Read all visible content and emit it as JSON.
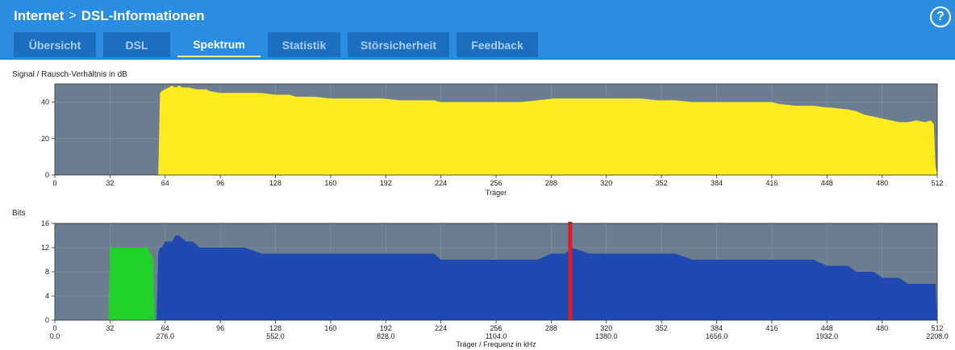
{
  "header": {
    "crumbs": [
      "Internet",
      "DSL-Informationen"
    ],
    "help_label": "?"
  },
  "tabs": [
    {
      "label": "Übersicht",
      "active": false
    },
    {
      "label": "DSL",
      "active": false
    },
    {
      "label": "Spektrum",
      "active": true
    },
    {
      "label": "Statistik",
      "active": false
    },
    {
      "label": "Störsicherheit",
      "active": false
    },
    {
      "label": "Feedback",
      "active": false
    }
  ],
  "chart_data": [
    {
      "type": "area",
      "ylabel": "Signal / Rausch-Verhältnis in dB",
      "xlabel": "Träger",
      "xlim": [
        0,
        512
      ],
      "ylim": [
        0,
        50
      ],
      "x_ticks": [
        0,
        32,
        64,
        96,
        128,
        160,
        192,
        224,
        256,
        288,
        320,
        352,
        384,
        416,
        448,
        480,
        512
      ],
      "y_ticks": [
        0,
        20,
        40
      ],
      "grid": true,
      "colors": {
        "background": "#6b7d8e",
        "fill": "#ffeb1e",
        "grid": "#8a99a7"
      },
      "series": [
        {
          "x": [
            60,
            61,
            62,
            64,
            66,
            68,
            70,
            72,
            74,
            78,
            82,
            86,
            88,
            90,
            96,
            100,
            110,
            120,
            128,
            136,
            140,
            150,
            160,
            170,
            180,
            190,
            200,
            210,
            220,
            224,
            230,
            240,
            250,
            256,
            260,
            270,
            280,
            290,
            300,
            310,
            320,
            330,
            340,
            350,
            352,
            360,
            370,
            380,
            384,
            390,
            400,
            410,
            416,
            420,
            430,
            440,
            448,
            450,
            460,
            465,
            470,
            475,
            480,
            485,
            490,
            495,
            500,
            505,
            508,
            509,
            510,
            511,
            512
          ],
          "y": [
            0,
            45,
            46,
            47,
            48,
            49,
            48,
            49,
            48,
            48,
            47,
            47,
            47,
            46,
            45,
            45,
            45,
            45,
            44,
            44,
            43,
            43,
            42,
            42,
            42,
            42,
            41,
            41,
            41,
            40,
            40,
            40,
            40,
            40,
            40,
            40,
            41,
            42,
            42,
            42,
            42,
            42,
            42,
            41,
            41,
            41,
            40,
            40,
            40,
            40,
            40,
            40,
            40,
            39,
            38,
            38,
            37,
            37,
            36,
            35,
            33,
            32,
            31,
            30,
            29,
            29,
            30,
            29,
            30,
            29,
            28,
            5,
            0
          ]
        }
      ]
    },
    {
      "type": "area",
      "ylabel": "Bits",
      "xlabel": "Träger / Frequenz in kHz",
      "xlim": [
        0,
        512
      ],
      "ylim": [
        0,
        16
      ],
      "x_ticks": [
        0,
        32,
        64,
        96,
        128,
        160,
        192,
        224,
        256,
        288,
        320,
        352,
        384,
        416,
        448,
        480,
        512
      ],
      "x_ticks_secondary": [
        "0.0",
        "276.0",
        "552.0",
        "828.0",
        "1104.0",
        "1380.0",
        "1656.0",
        "1932.0",
        "2208.0"
      ],
      "y_ticks": [
        0,
        4,
        8,
        12,
        16
      ],
      "grid": true,
      "colors": {
        "background": "#6b7d8e",
        "upstream": "#22d22a",
        "downstream": "#1f48b0",
        "marker": "#e01b24",
        "grid": "#8a99a7"
      },
      "series": [
        {
          "name": "",
          "color": "upstream",
          "x": [
            31,
            32,
            33,
            50,
            54,
            55,
            56,
            57,
            58
          ],
          "y": [
            0,
            12,
            12,
            12,
            12,
            11,
            11,
            10,
            0
          ]
        },
        {
          "name": "",
          "color": "downstream",
          "x": [
            59,
            60,
            61,
            62,
            64,
            66,
            68,
            70,
            72,
            76,
            80,
            84,
            88,
            92,
            96,
            100,
            110,
            120,
            128,
            140,
            150,
            160,
            170,
            180,
            190,
            200,
            210,
            220,
            224,
            240,
            256,
            270,
            280,
            288,
            290,
            296,
            300,
            310,
            320,
            330,
            340,
            352,
            360,
            370,
            380,
            384,
            390,
            400,
            410,
            416,
            420,
            430,
            440,
            448,
            455,
            460,
            465,
            470,
            475,
            480,
            485,
            490,
            495,
            500,
            505,
            508,
            509,
            510,
            511,
            512
          ],
          "y": [
            0,
            11,
            12,
            12,
            13,
            13,
            13,
            14,
            14,
            13,
            13,
            12,
            12,
            12,
            12,
            12,
            12,
            11,
            11,
            11,
            11,
            11,
            11,
            11,
            11,
            11,
            11,
            11,
            10,
            10,
            10,
            10,
            10,
            11,
            11,
            11,
            12,
            11,
            11,
            11,
            11,
            11,
            11,
            10,
            10,
            10,
            10,
            10,
            10,
            10,
            10,
            10,
            10,
            9,
            9,
            9,
            8,
            8,
            8,
            7,
            7,
            7,
            6,
            6,
            6,
            6,
            6,
            6,
            6,
            0
          ]
        }
      ],
      "marker_x": 299
    }
  ]
}
